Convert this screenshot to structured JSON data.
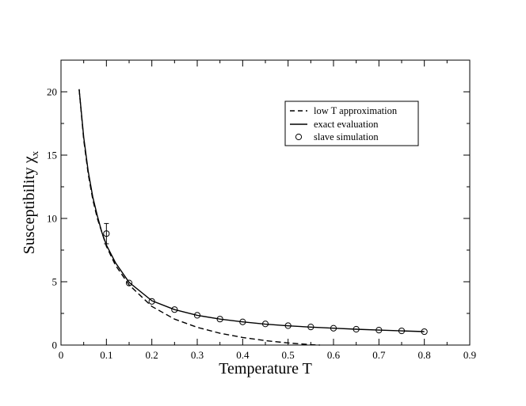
{
  "chart_data": {
    "type": "line",
    "xlabel": "Temperature  T",
    "ylabel_main": "Susceptibility ",
    "ylabel_symbol": "χ",
    "ylabel_sub": "x",
    "xlim": [
      0,
      0.9
    ],
    "ylim": [
      0,
      22.5
    ],
    "xticks": [
      0,
      0.1,
      0.2,
      0.3,
      0.4,
      0.5,
      0.6,
      0.7,
      0.8,
      0.9
    ],
    "xtick_labels": [
      "0",
      "0.1",
      "0.2",
      "0.3",
      "0.4",
      "0.5",
      "0.6",
      "0.7",
      "0.8",
      "0.9"
    ],
    "yticks": [
      0,
      5,
      10,
      15,
      20
    ],
    "ytick_labels": [
      "0",
      "5",
      "10",
      "15",
      "20"
    ],
    "grid": false,
    "legend_position": "top-right",
    "series": [
      {
        "name": "low T approximation",
        "style": "dashed",
        "color": "#000000",
        "x": [
          0.04,
          0.05,
          0.06,
          0.07,
          0.08,
          0.1,
          0.12,
          0.15,
          0.2,
          0.25,
          0.3,
          0.35,
          0.4,
          0.45,
          0.5,
          0.55,
          0.57
        ],
        "y": [
          20.2,
          16.2,
          13.5,
          11.5,
          10.0,
          7.8,
          6.3,
          4.75,
          3.05,
          2.05,
          1.4,
          0.93,
          0.6,
          0.35,
          0.17,
          0.03,
          0.0
        ]
      },
      {
        "name": "exact evaluation",
        "style": "solid",
        "color": "#000000",
        "x": [
          0.04,
          0.05,
          0.06,
          0.07,
          0.08,
          0.09,
          0.1,
          0.12,
          0.15,
          0.2,
          0.25,
          0.3,
          0.35,
          0.4,
          0.45,
          0.5,
          0.55,
          0.6,
          0.65,
          0.7,
          0.75,
          0.8
        ],
        "y": [
          20.2,
          16.4,
          13.7,
          11.7,
          10.2,
          8.9,
          7.9,
          6.5,
          4.95,
          3.5,
          2.8,
          2.35,
          2.05,
          1.83,
          1.65,
          1.52,
          1.42,
          1.33,
          1.25,
          1.18,
          1.12,
          1.06
        ]
      },
      {
        "name": "slave simulation",
        "style": "markers",
        "color": "#000000",
        "x": [
          0.1,
          0.15,
          0.2,
          0.25,
          0.3,
          0.35,
          0.4,
          0.45,
          0.5,
          0.55,
          0.6,
          0.65,
          0.7,
          0.75,
          0.8
        ],
        "y": [
          8.8,
          4.9,
          3.45,
          2.8,
          2.35,
          2.05,
          1.83,
          1.67,
          1.53,
          1.43,
          1.33,
          1.25,
          1.18,
          1.12,
          1.06
        ],
        "yerr": [
          0.8,
          0,
          0,
          0,
          0,
          0,
          0,
          0,
          0,
          0,
          0,
          0,
          0,
          0,
          0
        ]
      }
    ]
  }
}
